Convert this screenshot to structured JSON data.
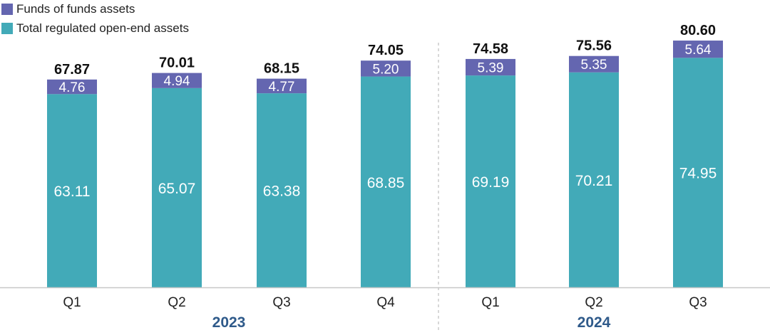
{
  "legend": {
    "funds_label": "Funds of funds assets",
    "total_label": "Total regulated open-end assets"
  },
  "colors": {
    "funds": "#6466b0",
    "total": "#42aab8",
    "year_text": "#2f5a8a",
    "total_text": "#111111",
    "inner_text": "#ffffff"
  },
  "chart_data": {
    "type": "bar",
    "stacked": true,
    "categories": [
      "Q1",
      "Q2",
      "Q3",
      "Q4",
      "Q1",
      "Q2",
      "Q3"
    ],
    "groups": [
      {
        "label": "2023",
        "categories": [
          "Q1",
          "Q2",
          "Q3",
          "Q4"
        ]
      },
      {
        "label": "2024",
        "categories": [
          "Q1",
          "Q2",
          "Q3"
        ]
      }
    ],
    "series": [
      {
        "name": "Total regulated open-end assets",
        "values": [
          63.11,
          65.07,
          63.38,
          68.85,
          69.19,
          70.21,
          74.95
        ]
      },
      {
        "name": "Funds of funds assets",
        "values": [
          4.76,
          4.94,
          4.77,
          5.2,
          5.39,
          5.35,
          5.64
        ]
      }
    ],
    "data_labels": {
      "total": [
        "63.11",
        "65.07",
        "63.38",
        "68.85",
        "69.19",
        "70.21",
        "74.95"
      ],
      "funds": [
        "4.76",
        "4.94",
        "4.77",
        "5.20",
        "5.39",
        "5.35",
        "5.64"
      ]
    },
    "totals": [
      "67.87",
      "70.01",
      "68.15",
      "74.05",
      "74.58",
      "75.56",
      "80.60"
    ],
    "ylim": [
      0,
      80.6
    ],
    "grid": false,
    "legend_position": "top-left",
    "title": "",
    "xlabel": "",
    "ylabel": ""
  }
}
